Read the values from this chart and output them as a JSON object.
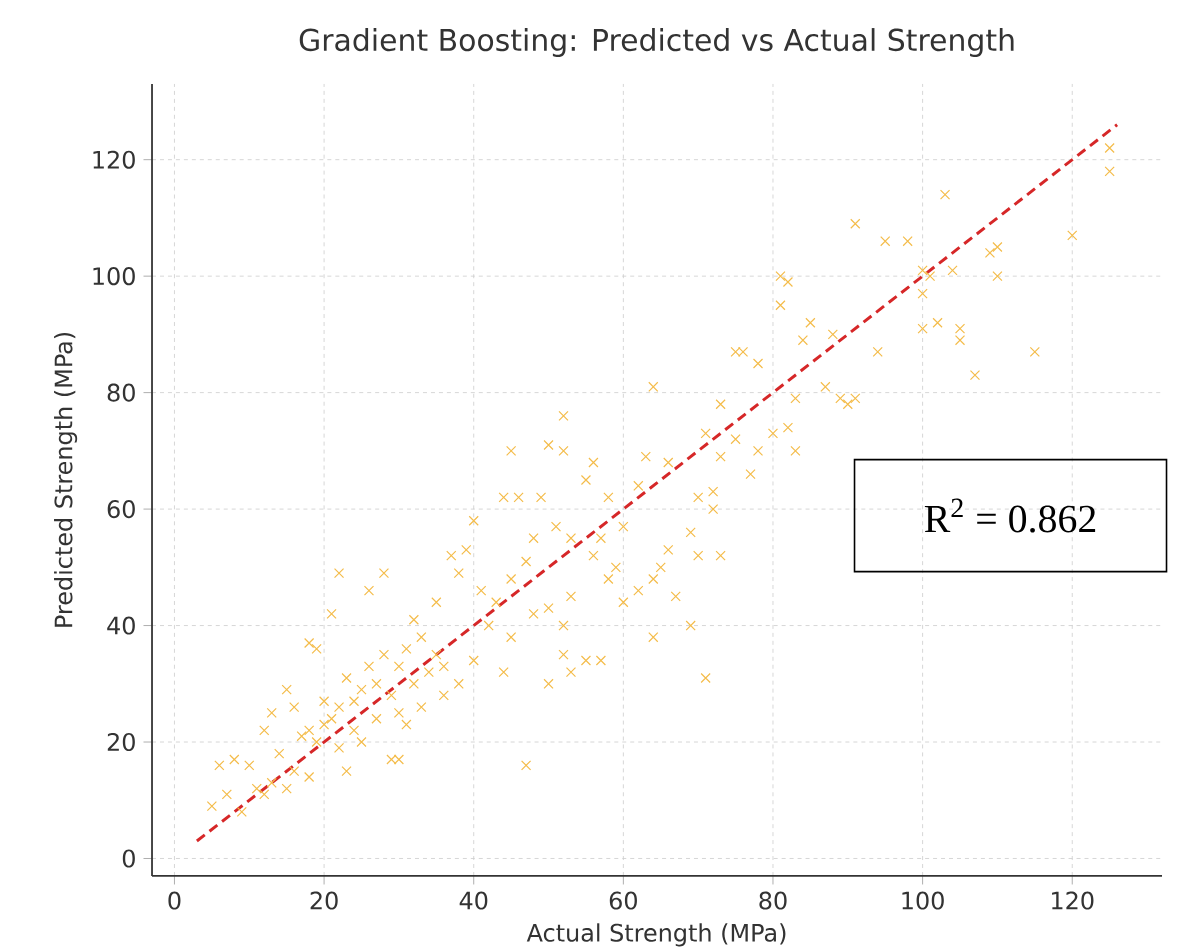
{
  "chart_data": {
    "type": "scatter",
    "title": "Gradient Boosting: Predicted vs Actual Strength",
    "xlabel": "Actual Strength (MPa)",
    "ylabel": "Predicted Strength (MPa)",
    "xlim": [
      -3,
      132
    ],
    "ylim": [
      -3,
      133
    ],
    "xticks": [
      0,
      20,
      40,
      60,
      80,
      100,
      120
    ],
    "yticks": [
      0,
      20,
      40,
      60,
      80,
      100,
      120
    ],
    "grid": true,
    "annotations": [
      "R$^{2}$ = 0.862"
    ],
    "series": [
      {
        "color": "#f4bc4a",
        "marker": "cross",
        "x": [
          125,
          125,
          103,
          91,
          95,
          98,
          110,
          109,
          120,
          100,
          101,
          104,
          110,
          81,
          82,
          100,
          81,
          102,
          105,
          100,
          105,
          94,
          115,
          107,
          84,
          85,
          88,
          89,
          90,
          91,
          87,
          83,
          82,
          80,
          83,
          76,
          75,
          78,
          64,
          52,
          71,
          73,
          75,
          78,
          77,
          73,
          70,
          72,
          69,
          70,
          73,
          72,
          65,
          64,
          66,
          67,
          69,
          64,
          71,
          60,
          62,
          63,
          66,
          58,
          56,
          55,
          50,
          52,
          45,
          44,
          46,
          40,
          49,
          51,
          53,
          48,
          57,
          59,
          56,
          58,
          53,
          50,
          52,
          50,
          52,
          53,
          55,
          57,
          47,
          45,
          43,
          41,
          39,
          37,
          38,
          35,
          42,
          40,
          38,
          36,
          33,
          32,
          31,
          30,
          32,
          29,
          30,
          31,
          30,
          29,
          27,
          25,
          24,
          23,
          22,
          21,
          20,
          19,
          18,
          17,
          22,
          26,
          28,
          21,
          18,
          19,
          20,
          24,
          23,
          22,
          25,
          27,
          16,
          15,
          13,
          12,
          14,
          16,
          13,
          11,
          10,
          8,
          6,
          7,
          5,
          9,
          12,
          15,
          18,
          26,
          33,
          34,
          35,
          36,
          28,
          45,
          47,
          48,
          44,
          62,
          60
        ],
        "values": [
          122,
          118,
          114,
          109,
          106,
          106,
          105,
          104,
          107,
          101,
          100,
          101,
          100,
          100,
          99,
          97,
          95,
          92,
          91,
          91,
          89,
          87,
          87,
          83,
          89,
          92,
          90,
          79,
          78,
          79,
          81,
          79,
          74,
          73,
          70,
          87,
          87,
          85,
          81,
          76,
          73,
          78,
          72,
          70,
          66,
          69,
          62,
          63,
          56,
          52,
          52,
          60,
          50,
          48,
          53,
          45,
          40,
          38,
          31,
          57,
          64,
          69,
          68,
          62,
          68,
          65,
          71,
          70,
          70,
          62,
          62,
          58,
          62,
          57,
          55,
          55,
          55,
          50,
          52,
          48,
          45,
          43,
          40,
          30,
          35,
          32,
          34,
          34,
          16,
          38,
          44,
          46,
          53,
          52,
          49,
          44,
          40,
          34,
          30,
          33,
          38,
          41,
          36,
          33,
          30,
          28,
          25,
          23,
          17,
          17,
          30,
          29,
          27,
          31,
          26,
          24,
          23,
          20,
          22,
          21,
          49,
          46,
          49,
          42,
          37,
          36,
          27,
          22,
          15,
          19,
          20,
          24,
          26,
          29,
          25,
          22,
          18,
          15,
          13,
          12,
          16,
          17,
          16,
          11,
          9,
          8,
          11,
          12,
          14,
          33,
          26,
          32,
          35,
          28,
          35,
          48,
          51,
          42,
          32,
          46,
          44
        ]
      },
      {
        "type": "line",
        "color": "#d62728",
        "marker": "none",
        "line_style": "dashed",
        "x": [
          3,
          126
        ],
        "values": [
          3,
          126
        ]
      }
    ]
  }
}
